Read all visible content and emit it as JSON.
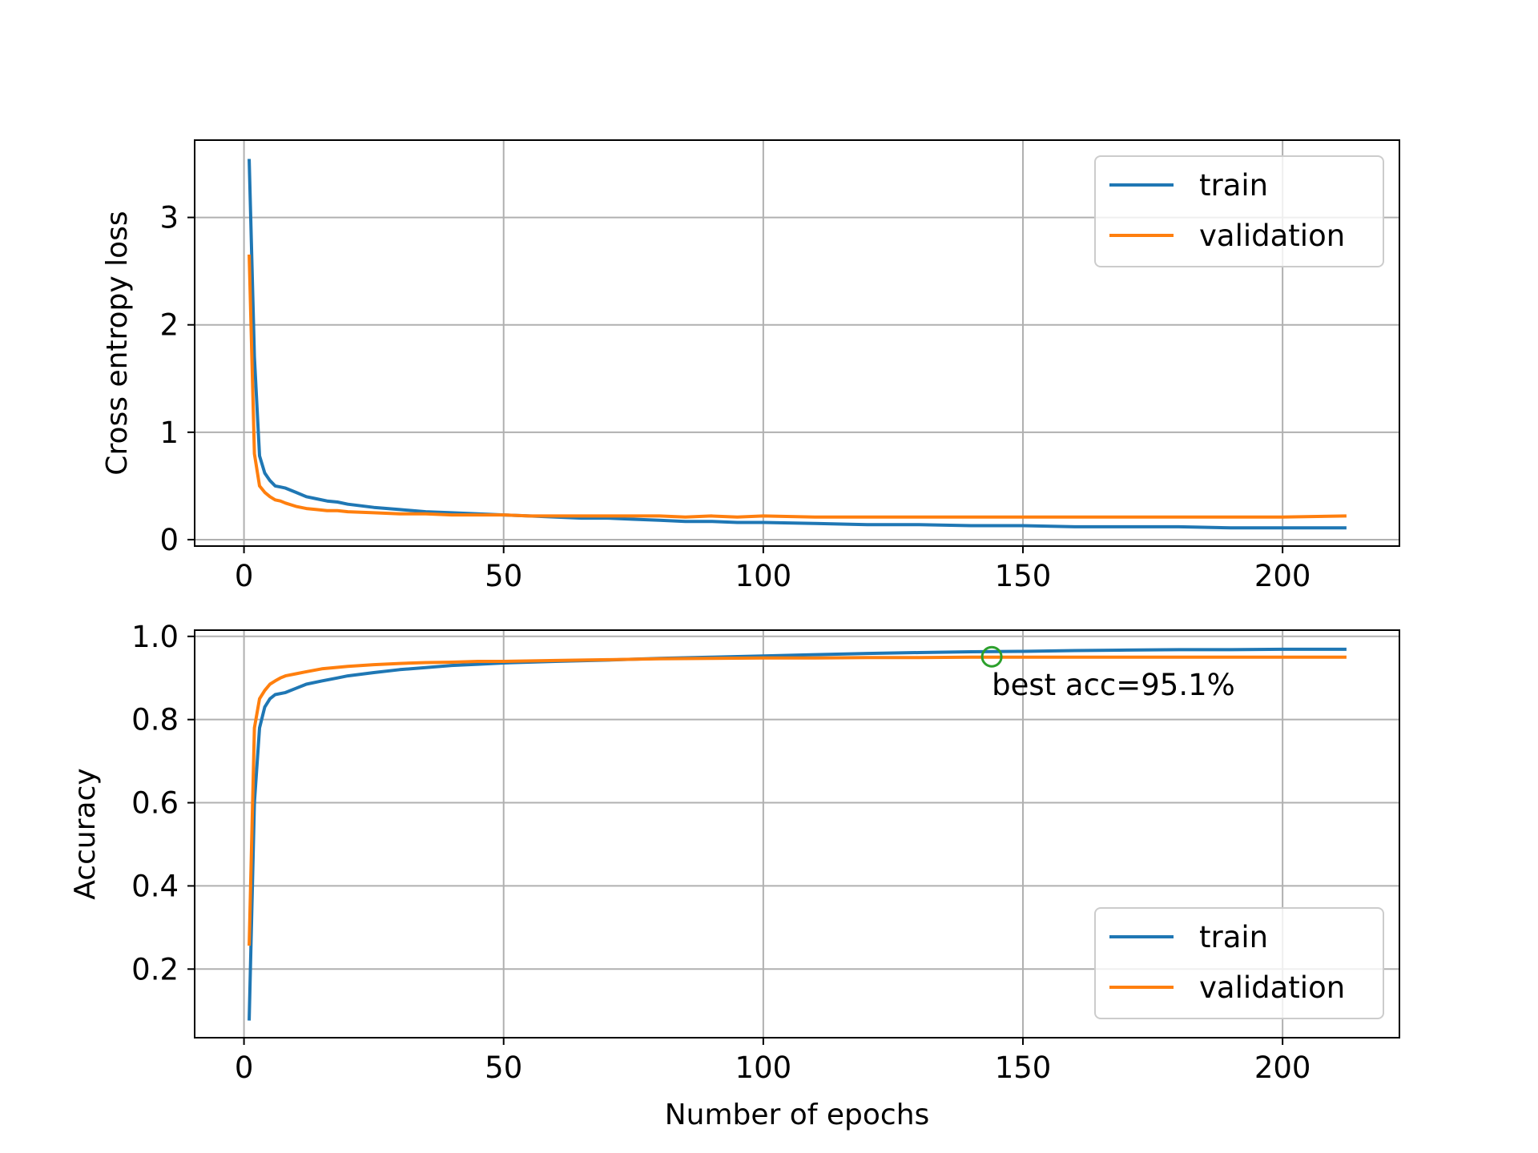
{
  "colors": {
    "train": "#1f77b4",
    "validation": "#ff7f0e",
    "marker": "#2ca02c",
    "grid": "#b0b0b0",
    "axes": "#000000"
  },
  "chart_data": [
    {
      "type": "line",
      "xlabel": "",
      "ylabel": "Cross entropy loss",
      "xlim": [
        -9.5,
        222.5
      ],
      "ylim": [
        -0.06,
        3.72
      ],
      "xticks": [
        0,
        50,
        100,
        150,
        200
      ],
      "xtick_labels": [
        "0",
        "50",
        "100",
        "150",
        "200"
      ],
      "yticks": [
        0,
        1,
        2,
        3
      ],
      "ytick_labels": [
        "0",
        "1",
        "2",
        "3"
      ],
      "grid": true,
      "legend_position": "upper right",
      "series": [
        {
          "name": "train",
          "color": "#1f77b4",
          "points": [
            [
              1,
              3.53
            ],
            [
              2,
              1.7
            ],
            [
              3,
              0.78
            ],
            [
              4,
              0.62
            ],
            [
              5,
              0.55
            ],
            [
              6,
              0.5
            ],
            [
              7,
              0.49
            ],
            [
              8,
              0.48
            ],
            [
              10,
              0.44
            ],
            [
              12,
              0.4
            ],
            [
              14,
              0.38
            ],
            [
              16,
              0.36
            ],
            [
              18,
              0.35
            ],
            [
              20,
              0.33
            ],
            [
              25,
              0.3
            ],
            [
              30,
              0.28
            ],
            [
              35,
              0.26
            ],
            [
              40,
              0.25
            ],
            [
              45,
              0.24
            ],
            [
              50,
              0.23
            ],
            [
              55,
              0.22
            ],
            [
              60,
              0.21
            ],
            [
              65,
              0.2
            ],
            [
              70,
              0.2
            ],
            [
              75,
              0.19
            ],
            [
              80,
              0.18
            ],
            [
              85,
              0.17
            ],
            [
              90,
              0.17
            ],
            [
              95,
              0.16
            ],
            [
              100,
              0.16
            ],
            [
              110,
              0.15
            ],
            [
              120,
              0.14
            ],
            [
              130,
              0.14
            ],
            [
              140,
              0.13
            ],
            [
              150,
              0.13
            ],
            [
              160,
              0.12
            ],
            [
              170,
              0.12
            ],
            [
              180,
              0.12
            ],
            [
              190,
              0.11
            ],
            [
              200,
              0.11
            ],
            [
              212,
              0.11
            ]
          ]
        },
        {
          "name": "validation",
          "color": "#ff7f0e",
          "points": [
            [
              1,
              2.64
            ],
            [
              2,
              0.8
            ],
            [
              3,
              0.5
            ],
            [
              4,
              0.44
            ],
            [
              5,
              0.4
            ],
            [
              6,
              0.37
            ],
            [
              7,
              0.36
            ],
            [
              8,
              0.34
            ],
            [
              10,
              0.31
            ],
            [
              12,
              0.29
            ],
            [
              14,
              0.28
            ],
            [
              16,
              0.27
            ],
            [
              18,
              0.27
            ],
            [
              20,
              0.26
            ],
            [
              25,
              0.25
            ],
            [
              30,
              0.24
            ],
            [
              35,
              0.24
            ],
            [
              40,
              0.23
            ],
            [
              45,
              0.23
            ],
            [
              50,
              0.23
            ],
            [
              55,
              0.22
            ],
            [
              60,
              0.22
            ],
            [
              65,
              0.22
            ],
            [
              70,
              0.22
            ],
            [
              75,
              0.22
            ],
            [
              80,
              0.22
            ],
            [
              85,
              0.21
            ],
            [
              90,
              0.22
            ],
            [
              95,
              0.21
            ],
            [
              100,
              0.22
            ],
            [
              110,
              0.21
            ],
            [
              120,
              0.21
            ],
            [
              130,
              0.21
            ],
            [
              140,
              0.21
            ],
            [
              150,
              0.21
            ],
            [
              160,
              0.21
            ],
            [
              170,
              0.21
            ],
            [
              180,
              0.21
            ],
            [
              190,
              0.21
            ],
            [
              200,
              0.21
            ],
            [
              212,
              0.22
            ]
          ]
        }
      ]
    },
    {
      "type": "line",
      "xlabel": "Number of epochs",
      "ylabel": "Accuracy",
      "xlim": [
        -9.5,
        222.5
      ],
      "ylim": [
        0.035,
        1.015
      ],
      "xticks": [
        0,
        50,
        100,
        150,
        200
      ],
      "xtick_labels": [
        "0",
        "50",
        "100",
        "150",
        "200"
      ],
      "yticks": [
        0.2,
        0.4,
        0.6,
        0.8,
        1.0
      ],
      "ytick_labels": [
        "0.2",
        "0.4",
        "0.6",
        "0.8",
        "1.0"
      ],
      "grid": true,
      "legend_position": "lower right",
      "series": [
        {
          "name": "train",
          "color": "#1f77b4",
          "points": [
            [
              1,
              0.08
            ],
            [
              2,
              0.6
            ],
            [
              3,
              0.78
            ],
            [
              4,
              0.83
            ],
            [
              5,
              0.85
            ],
            [
              6,
              0.86
            ],
            [
              8,
              0.865
            ],
            [
              10,
              0.875
            ],
            [
              12,
              0.885
            ],
            [
              15,
              0.893
            ],
            [
              18,
              0.9
            ],
            [
              20,
              0.905
            ],
            [
              25,
              0.913
            ],
            [
              30,
              0.92
            ],
            [
              35,
              0.925
            ],
            [
              40,
              0.93
            ],
            [
              45,
              0.933
            ],
            [
              50,
              0.936
            ],
            [
              60,
              0.94
            ],
            [
              70,
              0.943
            ],
            [
              80,
              0.947
            ],
            [
              90,
              0.95
            ],
            [
              100,
              0.953
            ],
            [
              110,
              0.956
            ],
            [
              120,
              0.959
            ],
            [
              130,
              0.961
            ],
            [
              140,
              0.963
            ],
            [
              150,
              0.964
            ],
            [
              160,
              0.966
            ],
            [
              170,
              0.967
            ],
            [
              180,
              0.968
            ],
            [
              190,
              0.968
            ],
            [
              200,
              0.969
            ],
            [
              212,
              0.969
            ]
          ]
        },
        {
          "name": "validation",
          "color": "#ff7f0e",
          "points": [
            [
              1,
              0.26
            ],
            [
              2,
              0.78
            ],
            [
              3,
              0.85
            ],
            [
              4,
              0.87
            ],
            [
              5,
              0.885
            ],
            [
              6,
              0.893
            ],
            [
              7,
              0.9
            ],
            [
              8,
              0.905
            ],
            [
              10,
              0.91
            ],
            [
              12,
              0.915
            ],
            [
              15,
              0.922
            ],
            [
              20,
              0.928
            ],
            [
              25,
              0.932
            ],
            [
              30,
              0.935
            ],
            [
              35,
              0.937
            ],
            [
              40,
              0.938
            ],
            [
              45,
              0.94
            ],
            [
              50,
              0.94
            ],
            [
              60,
              0.942
            ],
            [
              70,
              0.944
            ],
            [
              80,
              0.946
            ],
            [
              90,
              0.947
            ],
            [
              100,
              0.948
            ],
            [
              110,
              0.948
            ],
            [
              120,
              0.949
            ],
            [
              130,
              0.949
            ],
            [
              140,
              0.95
            ],
            [
              150,
              0.95
            ],
            [
              160,
              0.95
            ],
            [
              170,
              0.95
            ],
            [
              180,
              0.95
            ],
            [
              190,
              0.95
            ],
            [
              200,
              0.95
            ],
            [
              212,
              0.95
            ]
          ]
        }
      ],
      "annotation": {
        "marker_point": [
          144,
          0.951
        ],
        "text": "best acc=95.1%"
      }
    }
  ]
}
